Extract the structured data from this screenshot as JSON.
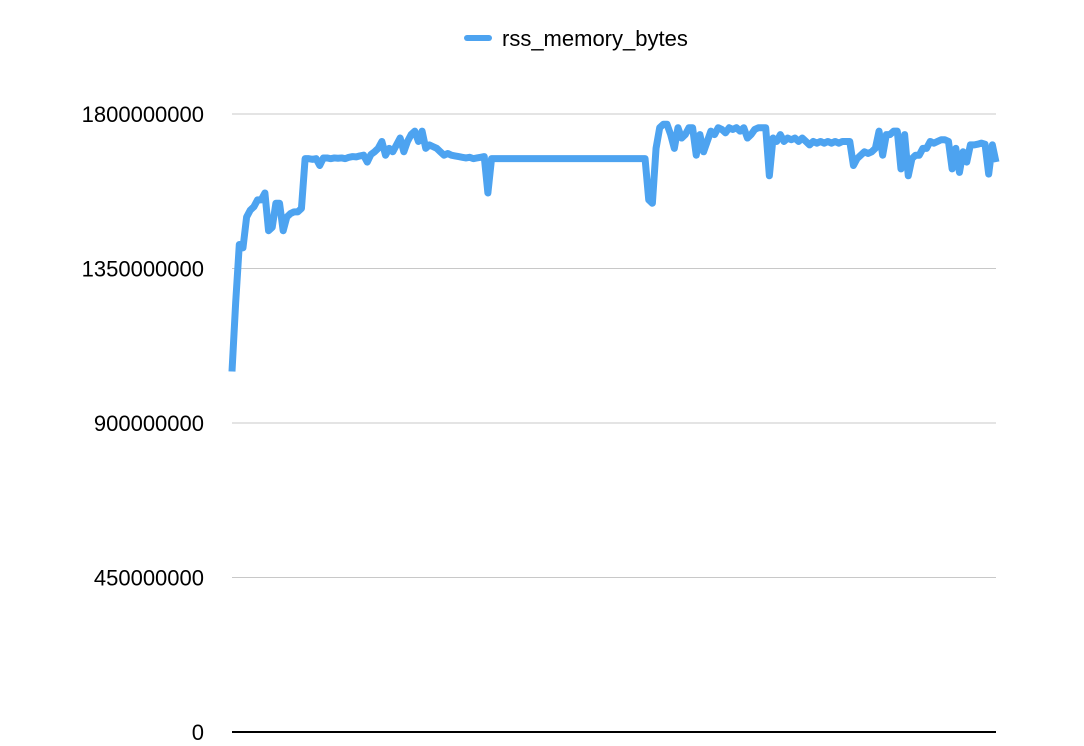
{
  "chart_data": {
    "type": "line",
    "title": "",
    "xlabel": "",
    "ylabel": "",
    "ylim": [
      0,
      1800000000
    ],
    "yticks": [
      0,
      450000000,
      900000000,
      1350000000,
      1800000000
    ],
    "ytick_labels": [
      "0",
      "450000000",
      "900000000",
      "1350000000",
      "1800000000"
    ],
    "grid": true,
    "legend_position": "top-center",
    "series": [
      {
        "name": "rss_memory_bytes",
        "color": "#4da3f0",
        "values": [
          1050000000,
          1250000000,
          1420000000,
          1410000000,
          1500000000,
          1520000000,
          1530000000,
          1550000000,
          1550000000,
          1570000000,
          1460000000,
          1470000000,
          1540000000,
          1540000000,
          1460000000,
          1500000000,
          1510000000,
          1515000000,
          1515000000,
          1525000000,
          1670000000,
          1670000000,
          1668000000,
          1670000000,
          1650000000,
          1672000000,
          1672000000,
          1670000000,
          1672000000,
          1671000000,
          1672000000,
          1670000000,
          1674000000,
          1676000000,
          1675000000,
          1678000000,
          1680000000,
          1660000000,
          1682000000,
          1690000000,
          1700000000,
          1720000000,
          1680000000,
          1700000000,
          1690000000,
          1710000000,
          1730000000,
          1690000000,
          1720000000,
          1740000000,
          1750000000,
          1720000000,
          1750000000,
          1700000000,
          1710000000,
          1705000000,
          1700000000,
          1690000000,
          1680000000,
          1685000000,
          1680000000,
          1678000000,
          1676000000,
          1674000000,
          1672000000,
          1674000000,
          1670000000,
          1672000000,
          1674000000,
          1676000000,
          1570000000,
          1670000000,
          1670000000,
          1670000000,
          1670000000,
          1670000000,
          1670000000,
          1670000000,
          1670000000,
          1670000000,
          1670000000,
          1670000000,
          1670000000,
          1670000000,
          1670000000,
          1670000000,
          1670000000,
          1670000000,
          1670000000,
          1670000000,
          1670000000,
          1670000000,
          1670000000,
          1670000000,
          1670000000,
          1670000000,
          1670000000,
          1670000000,
          1670000000,
          1670000000,
          1670000000,
          1670000000,
          1670000000,
          1670000000,
          1670000000,
          1670000000,
          1670000000,
          1670000000,
          1670000000,
          1670000000,
          1670000000,
          1670000000,
          1670000000,
          1670000000,
          1550000000,
          1540000000,
          1700000000,
          1760000000,
          1770000000,
          1770000000,
          1740000000,
          1700000000,
          1760000000,
          1730000000,
          1740000000,
          1760000000,
          1760000000,
          1680000000,
          1740000000,
          1690000000,
          1720000000,
          1750000000,
          1740000000,
          1760000000,
          1755000000,
          1745000000,
          1760000000,
          1755000000,
          1760000000,
          1750000000,
          1760000000,
          1730000000,
          1740000000,
          1755000000,
          1760000000,
          1760000000,
          1760000000,
          1620000000,
          1730000000,
          1720000000,
          1740000000,
          1720000000,
          1730000000,
          1725000000,
          1730000000,
          1720000000,
          1730000000,
          1720000000,
          1710000000,
          1720000000,
          1715000000,
          1720000000,
          1715000000,
          1720000000,
          1715000000,
          1720000000,
          1715000000,
          1720000000,
          1720000000,
          1720000000,
          1650000000,
          1670000000,
          1680000000,
          1690000000,
          1685000000,
          1690000000,
          1700000000,
          1750000000,
          1680000000,
          1740000000,
          1740000000,
          1750000000,
          1750000000,
          1640000000,
          1740000000,
          1620000000,
          1670000000,
          1680000000,
          1680000000,
          1700000000,
          1700000000,
          1720000000,
          1715000000,
          1720000000,
          1725000000,
          1725000000,
          1720000000,
          1640000000,
          1700000000,
          1630000000,
          1690000000,
          1660000000,
          1710000000,
          1710000000,
          1712000000,
          1715000000,
          1712000000,
          1625000000,
          1710000000,
          1660000000
        ]
      }
    ]
  }
}
